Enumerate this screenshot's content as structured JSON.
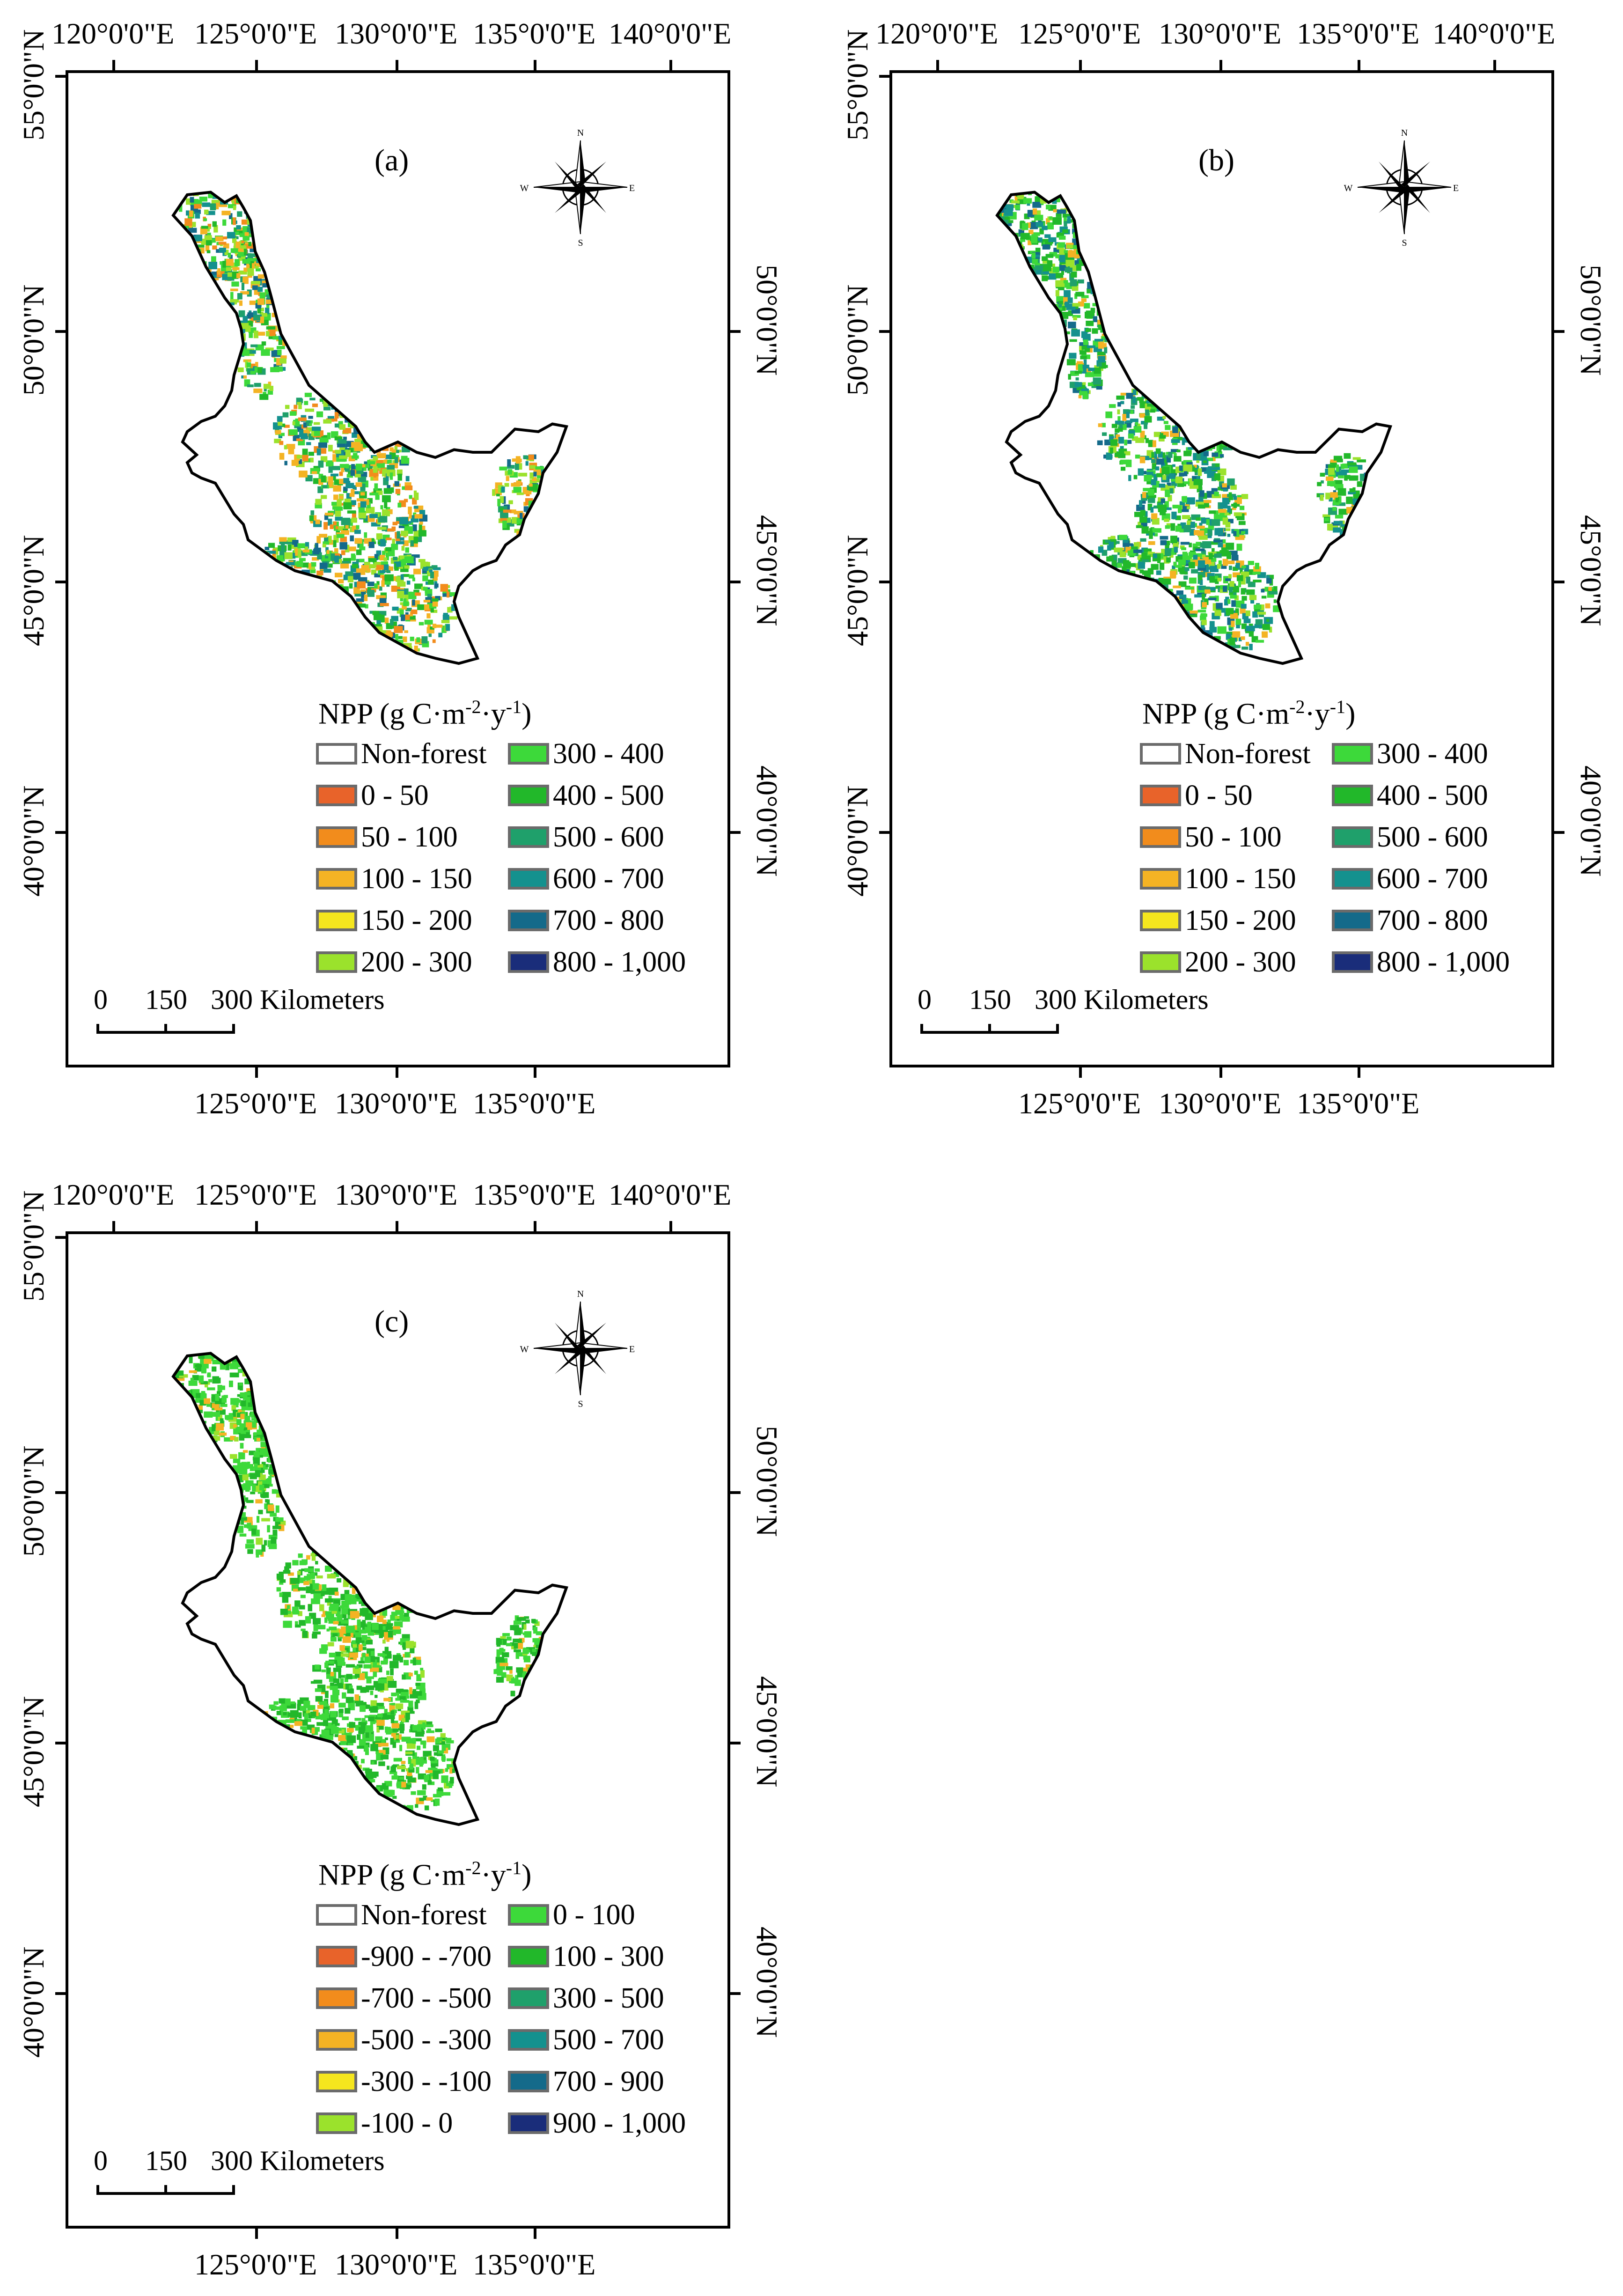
{
  "axis_labels": {
    "top": [
      "120°0'0\"E",
      "125°0'0\"E",
      "130°0'0\"E",
      "135°0'0\"E",
      "140°0'0\"E"
    ],
    "bottom": [
      "125°0'0\"E",
      "130°0'0\"E",
      "135°0'0\"E"
    ],
    "left": [
      "55°0'0\"N",
      "50°0'0\"N",
      "45°0'0\"N",
      "40°0'0\"N"
    ],
    "right": [
      "50°0'0\"N",
      "45°0'0\"N",
      "40°0'0\"N"
    ]
  },
  "compass": {
    "n": "N",
    "s": "S",
    "e": "E",
    "w": "W"
  },
  "scale": {
    "zero": "0",
    "mid": "150",
    "end": "300 Kilometers"
  },
  "legend_title": {
    "prefix": "NPP (g C·m",
    "exp1": "-2",
    "mid": "·y",
    "exp2": "-1",
    "suffix": ")"
  },
  "colors": {
    "nonforest": "#ffffff",
    "c1": "#e8632a",
    "c2": "#f28c1c",
    "c3": "#f4b324",
    "c4": "#f5e61e",
    "c5": "#9be22c",
    "c6": "#3dd93a",
    "c7": "#22b82a",
    "c8": "#1fa06b",
    "c9": "#14918e",
    "c10": "#146a8a",
    "c11": "#1a2d7a",
    "boundary": "#000000"
  },
  "panels": [
    {
      "title": "(a)",
      "legend": [
        "Non-forest",
        "0 - 50",
        "50 - 100",
        "100 - 150",
        "150 - 200",
        "200 - 300",
        "300 - 400",
        "400 - 500",
        "500 - 600",
        "600 - 700",
        "700 - 800",
        "800 - 1,000"
      ]
    },
    {
      "title": "(b)",
      "legend": [
        "Non-forest",
        "0 - 50",
        "50 - 100",
        "100 - 150",
        "150 - 200",
        "200 - 300",
        "300 - 400",
        "400 - 500",
        "500 - 600",
        "600 - 700",
        "700 - 800",
        "800 - 1,000"
      ]
    },
    {
      "title": "(c)",
      "legend": [
        "Non-forest",
        "-900 - -700",
        "-700 - -500",
        "-500 - -300",
        "-300 - -100",
        "-100 - 0",
        "0 - 100",
        "100 - 300",
        "300 - 500",
        "500 - 700",
        "700 - 900",
        "900 - 1,000"
      ]
    }
  ]
}
